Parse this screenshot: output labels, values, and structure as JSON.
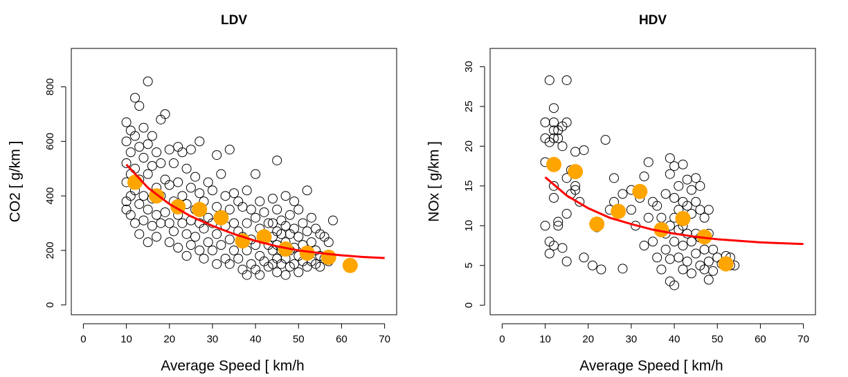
{
  "chart_data": [
    {
      "type": "scatter",
      "title": "LDV",
      "x_label": "Average Speed [ km/h",
      "y_label": "CO2 [ g/km ]",
      "xlim": [
        -2.8,
        72.8
      ],
      "ylim": [
        -36,
        941
      ],
      "xticks": [
        0,
        10,
        20,
        30,
        40,
        50,
        60,
        70
      ],
      "yticks": [
        0,
        200,
        400,
        600,
        800
      ],
      "series": [
        {
          "style": "open",
          "color": "#000000",
          "x": [
            10,
            10,
            10,
            10,
            10,
            10,
            11,
            11,
            11,
            11,
            11,
            12,
            12,
            12,
            12,
            12,
            13,
            13,
            13,
            13,
            13,
            14,
            14,
            14,
            14,
            15,
            15,
            15,
            15,
            15,
            16,
            16,
            16,
            16,
            17,
            17,
            17,
            17,
            18,
            18,
            18,
            18,
            19,
            19,
            19,
            20,
            20,
            20,
            20,
            21,
            21,
            21,
            22,
            22,
            22,
            22,
            23,
            23,
            23,
            24,
            24,
            24,
            24,
            25,
            25,
            25,
            25,
            26,
            26,
            26,
            27,
            27,
            27,
            27,
            28,
            28,
            28,
            29,
            29,
            29,
            30,
            30,
            30,
            31,
            31,
            31,
            31,
            32,
            32,
            32,
            33,
            33,
            33,
            34,
            34,
            34,
            34,
            35,
            35,
            35,
            36,
            36,
            36,
            37,
            37,
            37,
            38,
            38,
            38,
            38,
            39,
            39,
            39,
            40,
            40,
            40,
            40,
            41,
            41,
            41,
            41,
            42,
            42,
            42,
            43,
            43,
            43,
            44,
            44,
            44,
            44,
            44,
            45,
            45,
            45,
            45,
            45,
            45,
            46,
            46,
            46,
            46,
            47,
            47,
            47,
            47,
            47,
            48,
            48,
            48,
            48,
            49,
            49,
            49,
            49,
            50,
            50,
            50,
            50,
            51,
            51,
            51,
            52,
            52,
            52,
            52,
            53,
            53,
            53,
            54,
            54,
            54,
            55,
            55,
            55,
            56,
            56,
            57,
            57,
            58
          ],
          "values": [
            670,
            600,
            520,
            450,
            380,
            350,
            640,
            560,
            480,
            400,
            330,
            760,
            620,
            500,
            420,
            300,
            730,
            580,
            460,
            370,
            260,
            650,
            540,
            400,
            310,
            820,
            590,
            480,
            350,
            230,
            620,
            510,
            390,
            290,
            560,
            430,
            330,
            250,
            680,
            520,
            400,
            300,
            700,
            460,
            340,
            570,
            440,
            300,
            230,
            520,
            380,
            270,
            580,
            450,
            330,
            210,
            560,
            400,
            300,
            500,
            370,
            260,
            180,
            570,
            430,
            310,
            220,
            470,
            350,
            250,
            600,
            410,
            300,
            200,
            380,
            280,
            170,
            450,
            320,
            230,
            420,
            300,
            200,
            550,
            360,
            260,
            150,
            480,
            330,
            220,
            400,
            290,
            170,
            570,
            350,
            240,
            150,
            410,
            300,
            200,
            380,
            270,
            170,
            360,
            250,
            130,
            420,
            300,
            200,
            110,
            350,
            240,
            150,
            480,
            320,
            220,
            130,
            380,
            280,
            180,
            110,
            340,
            250,
            160,
            300,
            220,
            140,
            390,
            300,
            250,
            200,
            150,
            530,
            350,
            270,
            220,
            170,
            120,
            310,
            260,
            200,
            150,
            400,
            290,
            230,
            170,
            110,
            330,
            260,
            200,
            140,
            380,
            280,
            210,
            150,
            350,
            250,
            180,
            120,
            300,
            220,
            160,
            420,
            270,
            190,
            140,
            320,
            230,
            160,
            280,
            200,
            150,
            260,
            180,
            140,
            250,
            170,
            230,
            160,
            310
          ]
        },
        {
          "style": "filled",
          "color": "#ffa500",
          "x": [
            12,
            17,
            22,
            27,
            32,
            37,
            42,
            47,
            52,
            57,
            62
          ],
          "values": [
            450,
            400,
            360,
            350,
            320,
            235,
            250,
            205,
            190,
            175,
            145
          ]
        },
        {
          "style": "line",
          "color": "#ff0000",
          "x": [
            10,
            15,
            20,
            25,
            30,
            35,
            40,
            45,
            50,
            55,
            60,
            65,
            70
          ],
          "values": [
            515,
            430,
            370,
            325,
            290,
            260,
            235,
            215,
            200,
            190,
            182,
            176,
            172
          ]
        }
      ]
    },
    {
      "type": "scatter",
      "title": "HDV",
      "x_label": "Average Speed [ km/h",
      "y_label": "NOx [ g/km ]",
      "xlim": [
        -2.8,
        72.8
      ],
      "ylim": [
        -1.2,
        32.3
      ],
      "xticks": [
        0,
        10,
        20,
        30,
        40,
        50,
        60,
        70
      ],
      "yticks": [
        0,
        5,
        10,
        15,
        20,
        25,
        30
      ],
      "series": [
        {
          "style": "open",
          "color": "#000000",
          "x": [
            10,
            10,
            10,
            10,
            11,
            11,
            11,
            11,
            12,
            12,
            12,
            12,
            12,
            12,
            12,
            13,
            13,
            13,
            13,
            14,
            14,
            14,
            15,
            15,
            15,
            15,
            15,
            16,
            16,
            17,
            17,
            17,
            18,
            19,
            19,
            21,
            22,
            23,
            24,
            25,
            26,
            26,
            28,
            28,
            30,
            30,
            31,
            32,
            33,
            33,
            34,
            34,
            35,
            35,
            36,
            36,
            37,
            37,
            38,
            38,
            38,
            39,
            39,
            39,
            39,
            39,
            40,
            40,
            40,
            40,
            40,
            41,
            41,
            41,
            41,
            42,
            42,
            42,
            42,
            42,
            43,
            43,
            43,
            43,
            44,
            44,
            44,
            44,
            45,
            45,
            45,
            45,
            46,
            46,
            46,
            46,
            47,
            47,
            47,
            48,
            48,
            48,
            48,
            49,
            49,
            50,
            51,
            52,
            53,
            53,
            54
          ],
          "values": [
            23,
            21,
            18,
            10,
            20.5,
            8,
            6.5,
            28.3,
            24.8,
            23,
            22,
            21,
            15,
            13.5,
            7.5,
            22,
            21,
            10,
            10.5,
            22.5,
            20,
            7.2,
            28.3,
            23,
            16,
            11.5,
            5.5,
            17,
            14,
            19.3,
            15,
            14.5,
            13,
            19.5,
            6,
            5,
            9.8,
            4.5,
            20.8,
            12,
            16,
            13,
            14,
            4.6,
            14.5,
            12,
            10,
            13.5,
            16.2,
            7.5,
            18,
            11,
            13,
            8,
            12.5,
            6,
            11,
            4.5,
            14,
            9,
            7,
            18.5,
            16.5,
            10,
            5.8,
            3,
            17.5,
            13.5,
            11,
            8,
            2.5,
            15,
            12,
            9.5,
            6,
            17.7,
            13,
            10,
            7.5,
            4.5,
            15.8,
            12.5,
            9,
            5.5,
            14.5,
            11.5,
            8,
            4,
            16,
            13,
            9,
            6.5,
            15,
            12,
            8.5,
            5,
            11,
            7,
            4.5,
            12,
            9,
            5.5,
            3.2,
            7,
            4.3,
            6,
            5.2,
            6.2,
            6,
            5,
            5
          ]
        },
        {
          "style": "filled",
          "color": "#ffa500",
          "x": [
            12,
            17,
            22,
            27,
            32,
            37,
            42,
            47,
            52
          ],
          "values": [
            17.7,
            16.8,
            10.2,
            11.8,
            14.3,
            9.5,
            10.9,
            8.6,
            5.2
          ]
        },
        {
          "style": "line",
          "color": "#ff0000",
          "x": [
            10,
            15,
            20,
            25,
            30,
            35,
            40,
            45,
            50,
            55,
            60,
            65,
            70
          ],
          "values": [
            16.1,
            13.8,
            12.2,
            11.0,
            10.2,
            9.5,
            9.0,
            8.6,
            8.3,
            8.1,
            7.9,
            7.8,
            7.7
          ]
        }
      ]
    }
  ]
}
